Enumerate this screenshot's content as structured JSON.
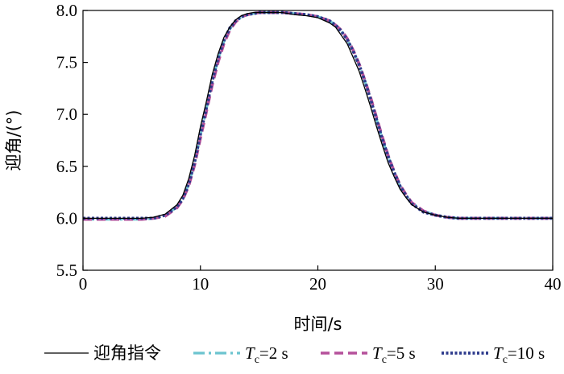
{
  "chart_data": {
    "type": "line",
    "xlabel": "时间/s",
    "ylabel": "迎角/(°)",
    "xlim": [
      0,
      40
    ],
    "ylim": [
      5.5,
      8.0
    ],
    "x_ticks": [
      "0",
      "10",
      "20",
      "30",
      "40"
    ],
    "y_ticks": [
      "5.5",
      "6.0",
      "6.5",
      "7.0",
      "7.5",
      "8.0"
    ],
    "grid": false,
    "legend_position": "bottom",
    "series": [
      {
        "name": "迎角指令",
        "color": "#000000",
        "style": "solid",
        "x": [
          0,
          5,
          6,
          7,
          8,
          8.5,
          9,
          9.5,
          10,
          10.5,
          11,
          11.5,
          12,
          12.5,
          13,
          13.5,
          14,
          14.5,
          15,
          16,
          17,
          18,
          19,
          20,
          21,
          21.5,
          22,
          22.5,
          23,
          23.5,
          24,
          24.5,
          25,
          25.5,
          26,
          26.5,
          27,
          27.5,
          28,
          29,
          30,
          31,
          32,
          33,
          35,
          40
        ],
        "y": [
          6.0,
          6.0,
          6.01,
          6.04,
          6.13,
          6.22,
          6.38,
          6.6,
          6.88,
          7.12,
          7.38,
          7.58,
          7.74,
          7.84,
          7.91,
          7.95,
          7.97,
          7.98,
          7.98,
          7.98,
          7.98,
          7.96,
          7.95,
          7.93,
          7.88,
          7.84,
          7.76,
          7.68,
          7.55,
          7.42,
          7.25,
          7.07,
          6.88,
          6.7,
          6.53,
          6.4,
          6.28,
          6.2,
          6.13,
          6.06,
          6.03,
          6.01,
          6.0,
          6.0,
          6.0,
          6.0
        ]
      },
      {
        "name_prefix": "T",
        "name_sub": "c",
        "name_suffix": "=2 s",
        "color": "#6cc4cf",
        "style": "dashdot",
        "x": [
          0,
          5,
          6,
          7,
          8,
          8.5,
          9,
          9.5,
          10,
          10.5,
          11,
          11.5,
          12,
          12.5,
          13,
          13.5,
          14,
          14.5,
          15,
          16,
          17,
          18,
          19,
          20,
          21,
          21.5,
          22,
          22.5,
          23,
          23.5,
          24,
          24.5,
          25,
          25.5,
          26,
          26.5,
          27,
          27.5,
          28,
          29,
          30,
          31,
          32,
          33,
          35,
          40
        ],
        "y": [
          5.99,
          5.99,
          6.0,
          6.03,
          6.11,
          6.19,
          6.33,
          6.53,
          6.8,
          7.05,
          7.31,
          7.53,
          7.7,
          7.82,
          7.9,
          7.94,
          7.96,
          7.97,
          7.98,
          7.98,
          7.98,
          7.97,
          7.96,
          7.94,
          7.9,
          7.86,
          7.8,
          7.72,
          7.61,
          7.48,
          7.32,
          7.14,
          6.95,
          6.76,
          6.59,
          6.44,
          6.31,
          6.22,
          6.15,
          6.07,
          6.03,
          6.01,
          6.0,
          6.0,
          6.0,
          6.0
        ]
      },
      {
        "name_prefix": "T",
        "name_sub": "c",
        "name_suffix": "=5 s",
        "color": "#b5519b",
        "style": "dashed",
        "x": [
          0,
          5,
          6,
          7,
          8,
          8.5,
          9,
          9.5,
          10,
          10.5,
          11,
          11.5,
          12,
          12.5,
          13,
          13.5,
          14,
          14.5,
          15,
          16,
          17,
          18,
          19,
          20,
          21,
          21.5,
          22,
          22.5,
          23,
          23.5,
          24,
          24.5,
          25,
          25.5,
          26,
          26.5,
          27,
          27.5,
          28,
          29,
          30,
          31,
          32,
          33,
          35,
          40
        ],
        "y": [
          5.99,
          5.99,
          6.0,
          6.02,
          6.1,
          6.18,
          6.31,
          6.51,
          6.77,
          7.02,
          7.28,
          7.5,
          7.68,
          7.81,
          7.89,
          7.94,
          7.96,
          7.97,
          7.98,
          7.98,
          7.98,
          7.97,
          7.96,
          7.94,
          7.9,
          7.86,
          7.81,
          7.73,
          7.62,
          7.49,
          7.33,
          7.16,
          6.97,
          6.78,
          6.6,
          6.45,
          6.32,
          6.23,
          6.15,
          6.07,
          6.03,
          6.01,
          6.0,
          6.0,
          6.0,
          6.0
        ]
      },
      {
        "name_prefix": "T",
        "name_sub": "c",
        "name_suffix": "=10 s",
        "color": "#2d3a8c",
        "style": "dotted",
        "x": [
          0,
          5,
          6,
          7,
          8,
          8.5,
          9,
          9.5,
          10,
          10.5,
          11,
          11.5,
          12,
          12.5,
          13,
          13.5,
          14,
          14.5,
          15,
          16,
          17,
          18,
          19,
          20,
          21,
          21.5,
          22,
          22.5,
          23,
          23.5,
          24,
          24.5,
          25,
          25.5,
          26,
          26.5,
          27,
          27.5,
          28,
          29,
          30,
          31,
          32,
          33,
          35,
          40
        ],
        "y": [
          6.0,
          6.0,
          6.0,
          6.03,
          6.11,
          6.19,
          6.33,
          6.54,
          6.81,
          7.06,
          7.32,
          7.54,
          7.71,
          7.83,
          7.9,
          7.94,
          7.96,
          7.97,
          7.98,
          7.98,
          7.98,
          7.97,
          7.96,
          7.94,
          7.9,
          7.86,
          7.8,
          7.72,
          7.61,
          7.48,
          7.32,
          7.14,
          6.95,
          6.76,
          6.59,
          6.44,
          6.31,
          6.22,
          6.14,
          6.06,
          6.03,
          6.01,
          6.0,
          6.0,
          6.0,
          6.0
        ]
      }
    ]
  }
}
